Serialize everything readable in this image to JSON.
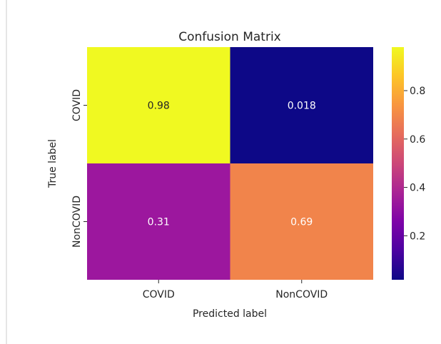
{
  "chart_data": {
    "type": "heatmap",
    "title": "Confusion Matrix",
    "xlabel": "Predicted label",
    "ylabel": "True label",
    "x_categories": [
      "COVID",
      "NonCOVID"
    ],
    "y_categories": [
      "COVID",
      "NonCOVID"
    ],
    "values": [
      [
        0.98,
        0.018
      ],
      [
        0.31,
        0.69
      ]
    ],
    "value_labels": [
      [
        "0.98",
        "0.018"
      ],
      [
        "0.31",
        "0.69"
      ]
    ],
    "colormap": "plasma",
    "cell_colors": [
      [
        "#f0f921",
        "#0d0887"
      ],
      [
        "#9c179e",
        "#f1844b"
      ]
    ],
    "annotation_colors": [
      [
        "#262626",
        "#ffffff"
      ],
      [
        "#ffffff",
        "#ffffff"
      ]
    ],
    "colorbar": {
      "range": [
        0.018,
        0.98
      ],
      "ticks": [
        0.2,
        0.4,
        0.6,
        0.8
      ],
      "tick_labels": [
        "0.2",
        "0.4",
        "0.6",
        "0.8"
      ]
    }
  }
}
